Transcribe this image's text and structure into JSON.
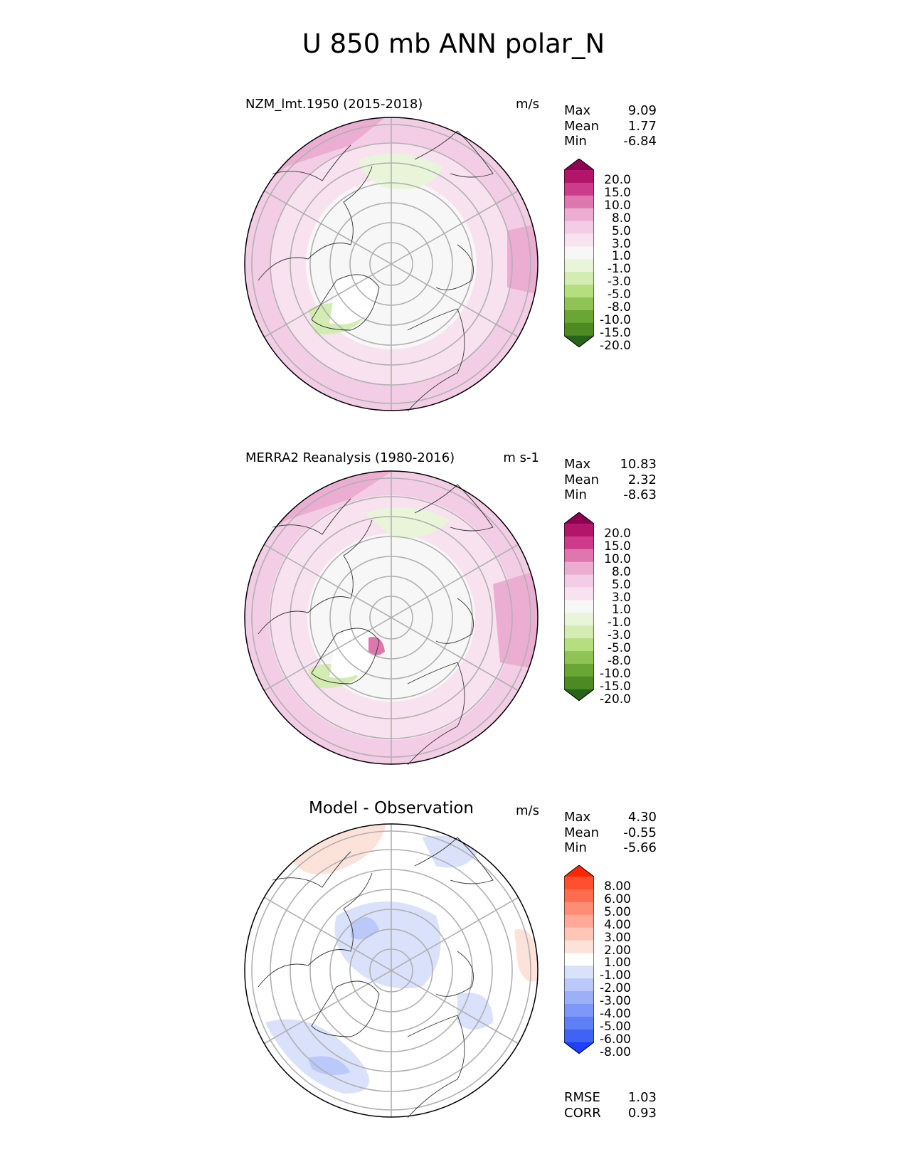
{
  "title": "U 850 mb ANN polar_N",
  "panels": [
    {
      "id": "model",
      "title": "NZM_lmt.1950 (2015-2018)",
      "units": "m/s",
      "stats": [
        {
          "label": "Max",
          "value": "9.09"
        },
        {
          "label": "Mean",
          "value": "1.77"
        },
        {
          "label": "Min",
          "value": "-6.84"
        }
      ],
      "colorbar": {
        "ticks": [
          "20.0",
          "15.0",
          "10.0",
          "8.0",
          "5.0",
          "3.0",
          "1.0",
          "-1.0",
          "-3.0",
          "-5.0",
          "-8.0",
          "-10.0",
          "-15.0",
          "-20.0"
        ],
        "colors": [
          "#8e0152",
          "#b3156b",
          "#cd3c8b",
          "#de77ae",
          "#ebaed2",
          "#f3cde5",
          "#f8e2ef",
          "#f7f7f7",
          "#e9f5d9",
          "#d3ecb1",
          "#b5de7e",
          "#8fc355",
          "#6aa634",
          "#4d8a24",
          "#276419"
        ]
      }
    },
    {
      "id": "obs",
      "title": "MERRA2 Reanalysis (1980-2016)",
      "units": "m s-1",
      "stats": [
        {
          "label": "Max",
          "value": "10.83"
        },
        {
          "label": "Mean",
          "value": "2.32"
        },
        {
          "label": "Min",
          "value": "-8.63"
        }
      ],
      "colorbar": {
        "ticks": [
          "20.0",
          "15.0",
          "10.0",
          "8.0",
          "5.0",
          "3.0",
          "1.0",
          "-1.0",
          "-3.0",
          "-5.0",
          "-8.0",
          "-10.0",
          "-15.0",
          "-20.0"
        ],
        "colors": [
          "#8e0152",
          "#b3156b",
          "#cd3c8b",
          "#de77ae",
          "#ebaed2",
          "#f3cde5",
          "#f8e2ef",
          "#f7f7f7",
          "#e9f5d9",
          "#d3ecb1",
          "#b5de7e",
          "#8fc355",
          "#6aa634",
          "#4d8a24",
          "#276419"
        ]
      }
    },
    {
      "id": "diff",
      "title": "Model - Observation",
      "units": "m/s",
      "stats": [
        {
          "label": "Max",
          "value": "4.30"
        },
        {
          "label": "Mean",
          "value": "-0.55"
        },
        {
          "label": "Min",
          "value": "-5.66"
        }
      ],
      "colorbar": {
        "ticks": [
          "8.00",
          "6.00",
          "5.00",
          "4.00",
          "3.00",
          "2.00",
          "1.00",
          "-1.00",
          "-2.00",
          "-3.00",
          "-4.00",
          "-5.00",
          "-6.00",
          "-8.00"
        ],
        "colors": [
          "#ff2600",
          "#ff4f2e",
          "#ff6d50",
          "#ff8c74",
          "#ffaa98",
          "#ffc6b8",
          "#fde2da",
          "#ffffff",
          "#d9e1fb",
          "#bac8fa",
          "#9cb0f8",
          "#7e98f7",
          "#5f7ff6",
          "#4163f5",
          "#1f3eff"
        ]
      }
    }
  ],
  "error_stats": [
    {
      "label": "RMSE",
      "value": "1.03"
    },
    {
      "label": "CORR",
      "value": "0.93"
    }
  ]
}
